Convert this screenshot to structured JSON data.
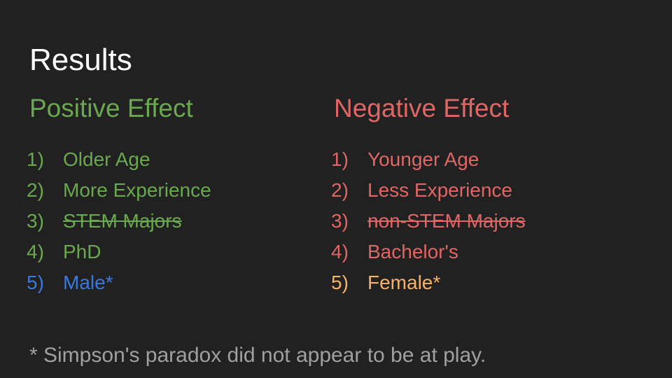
{
  "slide": {
    "title": "Results",
    "positive": {
      "heading": "Positive Effect",
      "color": "#6aa84f",
      "items": [
        {
          "num": "1)",
          "text": "Older Age",
          "color": "#6aa84f",
          "struck": false
        },
        {
          "num": "2)",
          "text": "More Experience",
          "color": "#6aa84f",
          "struck": false
        },
        {
          "num": "3)",
          "text": "STEM Majors",
          "color": "#6aa84f",
          "struck": true
        },
        {
          "num": "4)",
          "text": "PhD",
          "color": "#6aa84f",
          "struck": false
        },
        {
          "num": "5)",
          "text": "Male*",
          "color": "#3c78d8",
          "struck": false
        }
      ]
    },
    "negative": {
      "heading": "Negative Effect",
      "color": "#e06666",
      "items": [
        {
          "num": "1)",
          "text": "Younger Age",
          "color": "#e06666",
          "struck": false
        },
        {
          "num": "2)",
          "text": "Less Experience",
          "color": "#e06666",
          "struck": false
        },
        {
          "num": "3)",
          "text": "non-STEM Majors",
          "color": "#e06666",
          "struck": true
        },
        {
          "num": "4)",
          "text": "Bachelor's",
          "color": "#e06666",
          "struck": false
        },
        {
          "num": "5)",
          "text": "Female*",
          "color": "#f6b26b",
          "struck": false
        }
      ]
    },
    "footnote": "* Simpson's paradox did not appear to be at play."
  }
}
